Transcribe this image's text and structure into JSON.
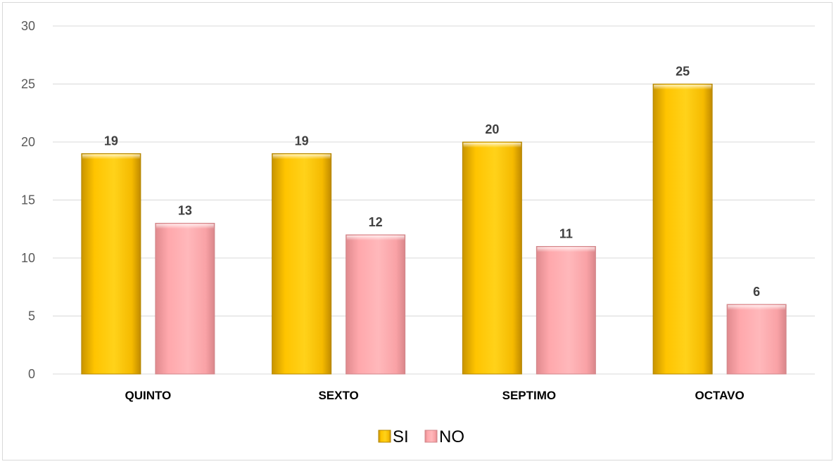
{
  "chart_data": {
    "type": "bar",
    "categories": [
      "QUINTO",
      "SEXTO",
      "SEPTIMO",
      "OCTAVO"
    ],
    "series": [
      {
        "name": "SI",
        "values": [
          19,
          19,
          20,
          25
        ],
        "color": "#FFC000"
      },
      {
        "name": "NO",
        "values": [
          13,
          12,
          11,
          6
        ],
        "color": "#FFA8AC"
      }
    ],
    "yticks": [
      0,
      5,
      10,
      15,
      20,
      25,
      30
    ],
    "ylim": [
      0,
      30
    ],
    "grid": true,
    "data_labels": true,
    "legend_position": "bottom"
  }
}
